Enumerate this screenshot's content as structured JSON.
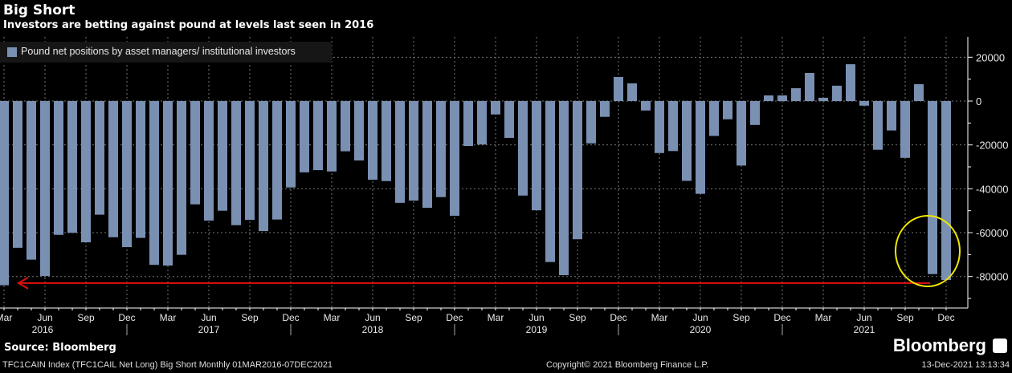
{
  "header": {
    "title": "Big Short",
    "subtitle": "Investors are betting against pound at levels last seen in 2016"
  },
  "footer": {
    "source": "Source: Bloomberg",
    "ticker": "TFC1CAIN Index (TFC1CAIL Net Long) Big Short  Monthly 01MAR2016-07DEC2021",
    "copyright": "Copyright© 2021 Bloomberg Finance L.P.",
    "timestamp": "13-Dec-2021 13:13:34",
    "brand": "Bloomberg"
  },
  "colors": {
    "bar": "#7a90b3",
    "background": "#000000",
    "arrow": "#e01010",
    "circle": "#f0e600"
  },
  "chart_data": {
    "type": "bar",
    "title": "Big Short",
    "subtitle": "Investors are betting against pound at levels last seen in 2016",
    "legend": {
      "position": "top-left",
      "entries": [
        "Pound net positions by asset managers/ institutional investors"
      ]
    },
    "series": [
      {
        "name": "Pound net positions by asset managers/ institutional investors",
        "start": "2016-03",
        "frequency": "monthly",
        "values": [
          -84000,
          -66900,
          -72300,
          -79800,
          -61000,
          -60100,
          -64400,
          -51800,
          -62100,
          -66600,
          -62400,
          -74700,
          -75000,
          -70100,
          -47100,
          -54500,
          -50000,
          -56600,
          -54200,
          -59300,
          -54000,
          -39400,
          -32500,
          -31500,
          -32100,
          -22900,
          -27100,
          -35900,
          -36500,
          -46400,
          -45400,
          -48700,
          -43800,
          -52300,
          -20500,
          -19800,
          -6100,
          -16800,
          -43100,
          -49800,
          -73400,
          -79400,
          -63000,
          -19300,
          -7200,
          11000,
          8100,
          -4300,
          -23700,
          -22800,
          -36400,
          -42300,
          -15900,
          -8300,
          -29400,
          -10900,
          2600,
          2600,
          5900,
          12800,
          1500,
          7000,
          16800,
          -2100,
          -22200,
          -13400,
          -25900,
          7700,
          -78900,
          -81600
        ]
      }
    ],
    "x_tick_labels": [
      "Mar",
      "Jun",
      "Sep",
      "Dec"
    ],
    "years": [
      "2016",
      "2017",
      "2018",
      "2019",
      "2020",
      "2021"
    ],
    "y_ticks": [
      20000,
      0,
      -20000,
      -40000,
      -60000,
      -80000
    ],
    "ylim": [
      -94000,
      28000
    ],
    "y_axis_side": "right",
    "grid": true,
    "annotations": [
      {
        "type": "arrow",
        "direction": "left",
        "level": -83000,
        "color": "red"
      },
      {
        "type": "circle",
        "around": [
          "2021-11",
          "2021-12"
        ],
        "color": "yellow"
      }
    ]
  }
}
